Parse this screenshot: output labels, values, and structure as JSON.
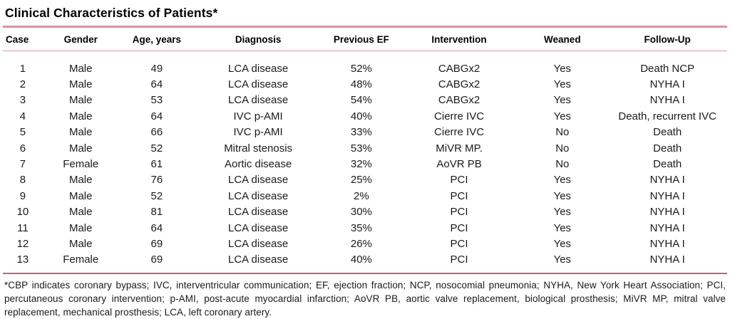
{
  "table": {
    "title": "Clinical Characteristics of Patients*",
    "columns": [
      "Case",
      "Gender",
      "Age, years",
      "Diagnosis",
      "Previous EF",
      "Intervention",
      "Weaned",
      "Follow-Up"
    ],
    "rows": [
      [
        "1",
        "Male",
        "49",
        "LCA disease",
        "52%",
        "CABGx2",
        "Yes",
        "Death NCP"
      ],
      [
        "2",
        "Male",
        "64",
        "LCA disease",
        "48%",
        "CABGx2",
        "Yes",
        "NYHA I"
      ],
      [
        "3",
        "Male",
        "53",
        "LCA disease",
        "54%",
        "CABGx2",
        "Yes",
        "NYHA I"
      ],
      [
        "4",
        "Male",
        "64",
        "IVC p-AMI",
        "40%",
        "Cierre IVC",
        "Yes",
        "Death, recurrent IVC"
      ],
      [
        "5",
        "Male",
        "66",
        "IVC p-AMI",
        "33%",
        "Cierre IVC",
        "No",
        "Death"
      ],
      [
        "6",
        "Male",
        "52",
        "Mitral stenosis",
        "53%",
        "MiVR MP.",
        "No",
        "Death"
      ],
      [
        "7",
        "Female",
        "61",
        "Aortic disease",
        "32%",
        "AoVR PB",
        "No",
        "Death"
      ],
      [
        "8",
        "Male",
        "76",
        "LCA disease",
        "25%",
        "PCI",
        "Yes",
        "NYHA I"
      ],
      [
        "9",
        "Male",
        "52",
        "LCA disease",
        "2%",
        "PCI",
        "Yes",
        "NYHA I"
      ],
      [
        "10",
        "Male",
        "81",
        "LCA disease",
        "30%",
        "PCI",
        "Yes",
        "NYHA I"
      ],
      [
        "11",
        "Male",
        "64",
        "LCA disease",
        "35%",
        "PCI",
        "Yes",
        "NYHA I"
      ],
      [
        "12",
        "Male",
        "69",
        "LCA disease",
        "26%",
        "PCI",
        "Yes",
        "NYHA I"
      ],
      [
        "13",
        "Female",
        "69",
        "LCA disease",
        "40%",
        "PCI",
        "Yes",
        "NYHA I"
      ]
    ],
    "footnote": "*CBP indicates coronary bypass; IVC, interventricular communication; EF, ejection fraction; NCP, nosocomial pneumonia; NYHA, New York Heart Association; PCI, percutaneous coronary intervention; p-AMI, post-acute myocardial infarction; AoVR PB, aortic valve replacement, biological prosthesis; MiVR MP, mitral valve replacement, mechanical prosthesis; LCA, left coronary artery."
  },
  "colors": {
    "rule_top": "#d9949c",
    "rule_header": "#dc9aa1",
    "rule_bottom": "#c9606a"
  }
}
